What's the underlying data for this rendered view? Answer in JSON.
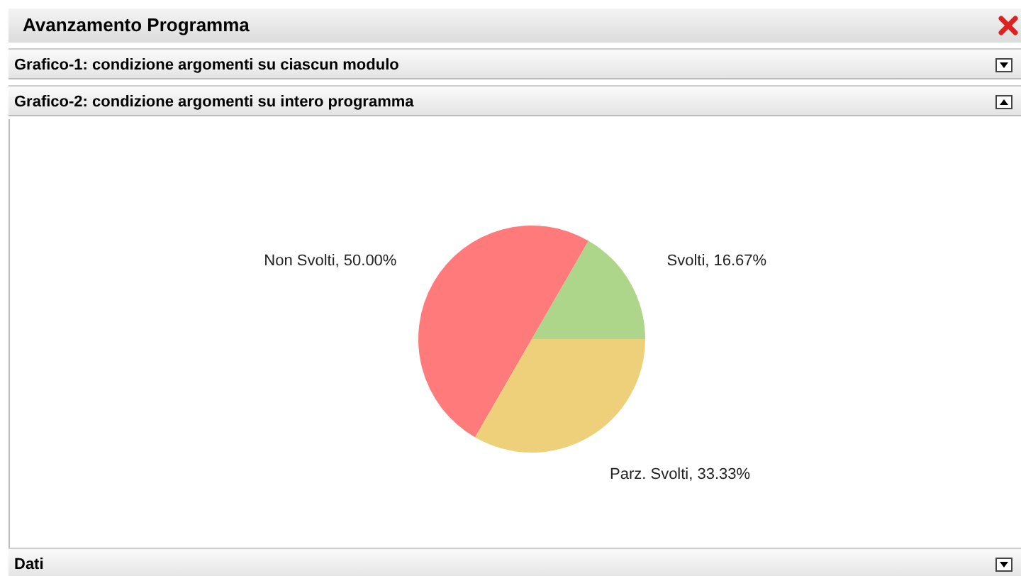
{
  "chart_data": {
    "type": "pie",
    "title": "Avanzamento Programma",
    "subtitle": "Grafico-2: condizione argomenti su intero programma",
    "annotations": [
      "Grafico-1: condizione argomenti su ciascun modulo",
      "Dati"
    ],
    "categories": [
      "Svolti",
      "Non Svolti",
      "Parz. Svolti"
    ],
    "values": [
      16.67,
      50,
      33.33
    ],
    "colors": [
      "#aed68a",
      "#ff7b7b",
      "#efd07a"
    ],
    "value_labels": [
      "16.67%",
      "50.00%",
      "33.33%"
    ],
    "legend": false
  }
}
